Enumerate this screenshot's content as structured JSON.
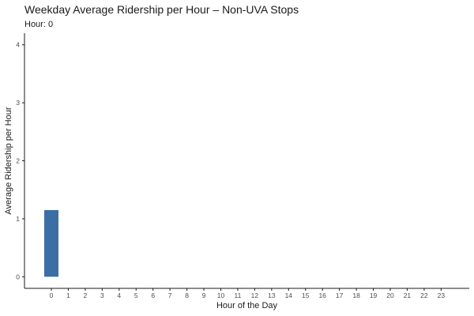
{
  "colors": {
    "bar": "#3a6ea5",
    "axis": "#1a1a1a"
  },
  "chart_data": {
    "type": "bar",
    "title": "Weekday Average Ridership per Hour – Non-UVA Stops",
    "subtitle": "Hour: 0",
    "xlabel": "Hour of the Day",
    "ylabel": "Average Ridership per Hour",
    "categories": [
      "0",
      "1",
      "2",
      "3",
      "4",
      "5",
      "6",
      "7",
      "8",
      "9",
      "10",
      "11",
      "12",
      "13",
      "14",
      "15",
      "16",
      "17",
      "18",
      "19",
      "20",
      "21",
      "22",
      "23"
    ],
    "values": [
      1.15,
      0,
      0,
      0,
      0,
      0,
      0,
      0,
      0,
      0,
      0,
      0,
      0,
      0,
      0,
      0,
      0,
      0,
      0,
      0,
      0,
      0,
      0,
      0
    ],
    "ylim": [
      -0.2,
      4.2
    ],
    "yticks": [
      0,
      1,
      2,
      3,
      4
    ],
    "grid": false,
    "legend": "none"
  }
}
